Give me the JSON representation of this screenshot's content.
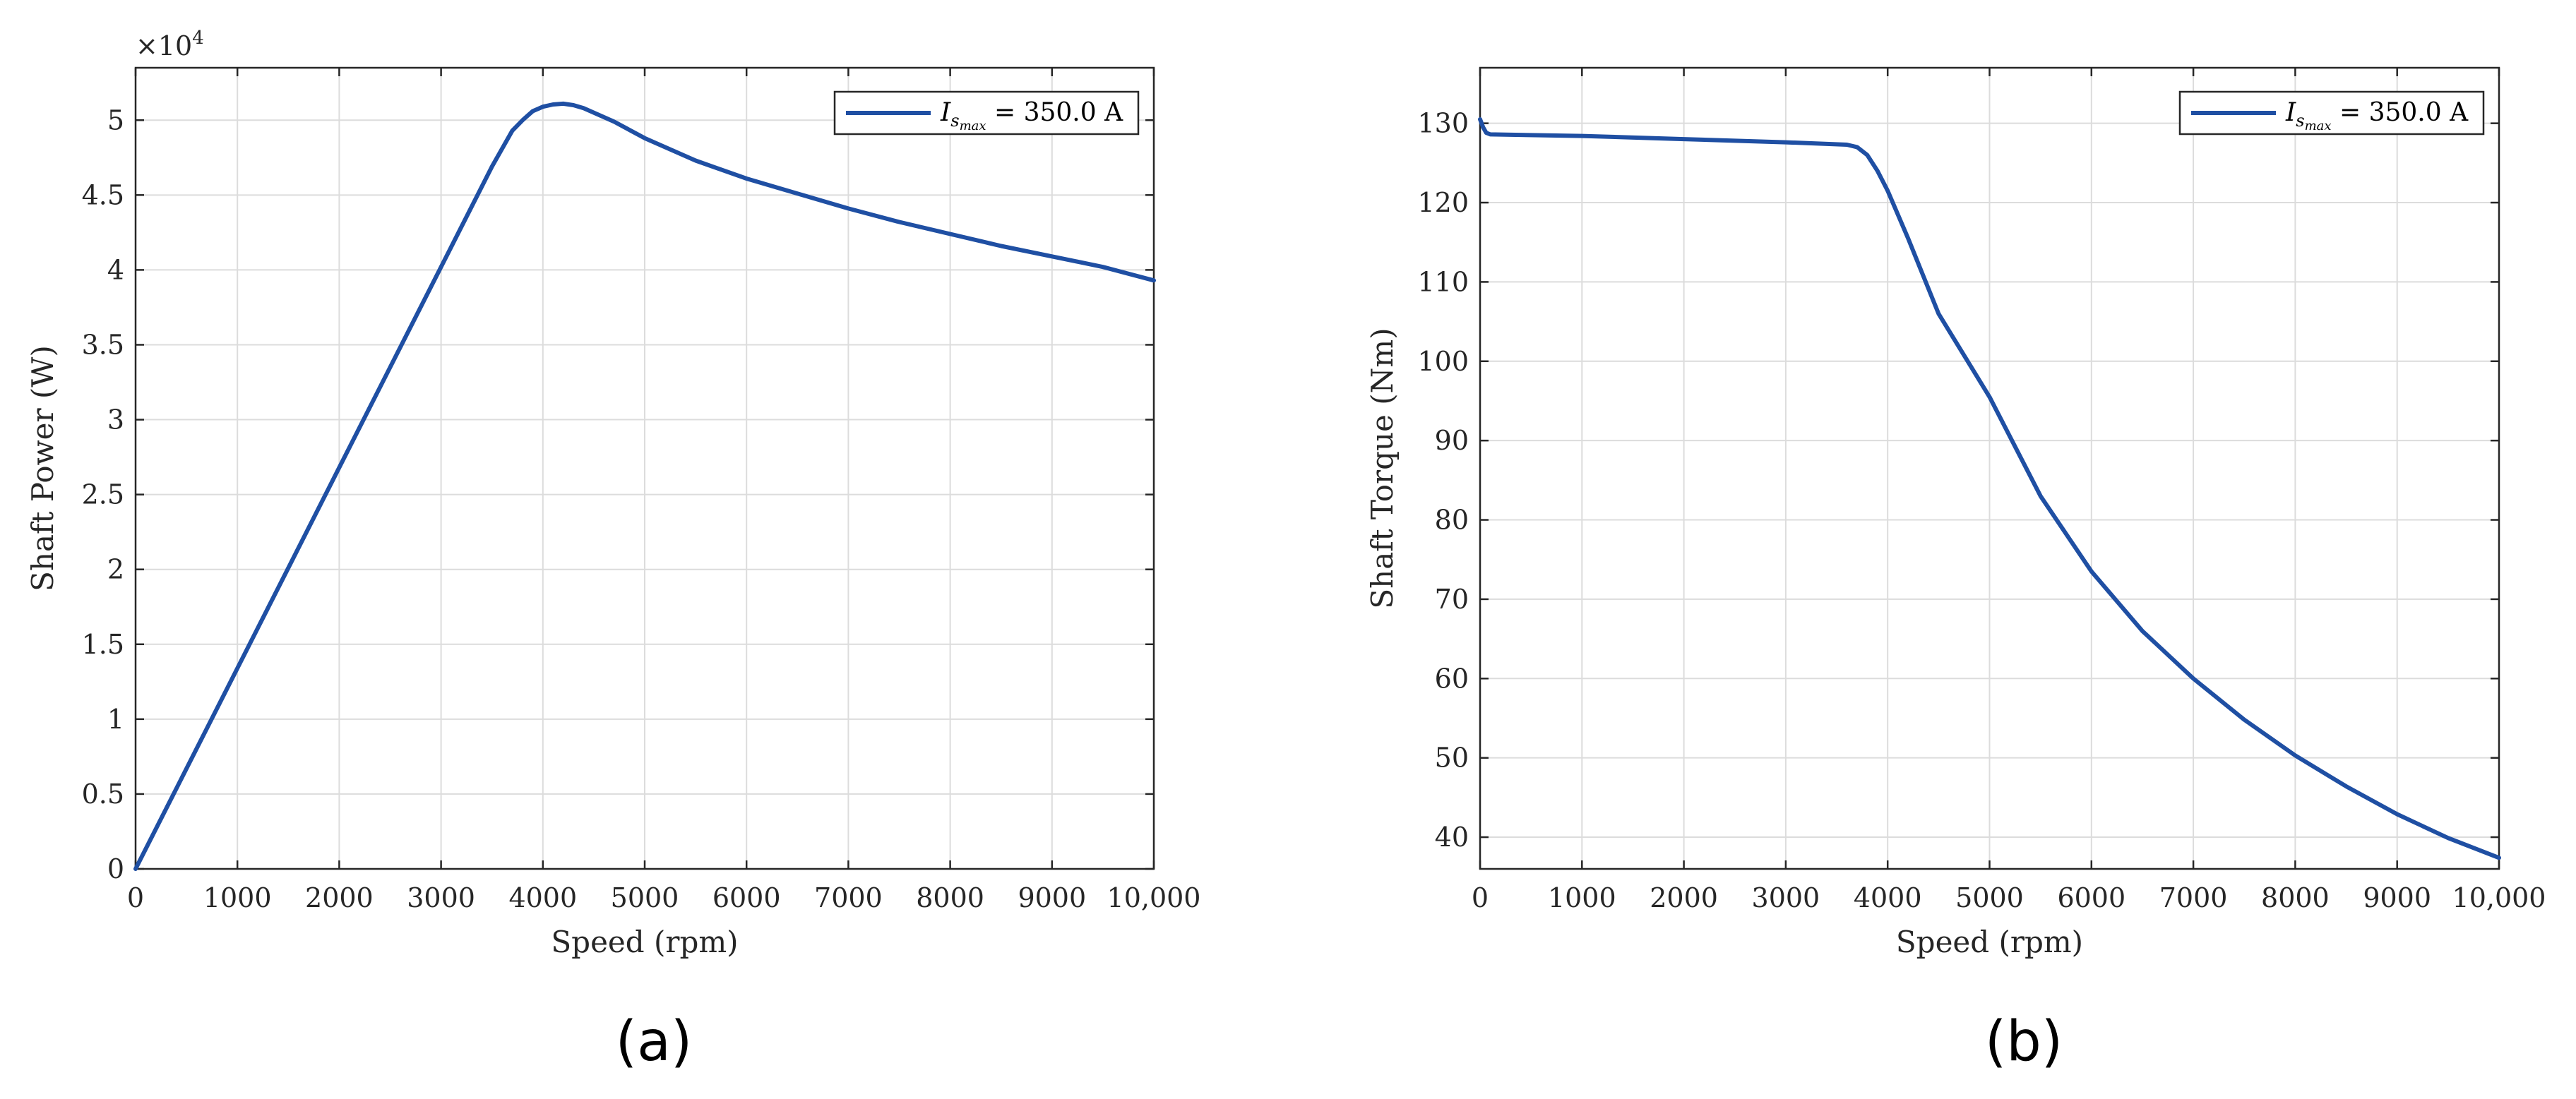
{
  "colors": {
    "series": "#1f4fa3",
    "grid": "#dcdcdc",
    "axis": "#262626"
  },
  "chart_data": [
    {
      "type": "line",
      "panel_label": "(a)",
      "xlabel": "Speed (rpm)",
      "ylabel": "Shaft Power (W)",
      "y_exponent_label": "×10",
      "y_exponent_power": "4",
      "xlim": [
        0,
        10000
      ],
      "ylim": [
        0,
        53500
      ],
      "grid": true,
      "legend": "top-right",
      "xticks": [
        {
          "v": 0,
          "label": "0"
        },
        {
          "v": 1000,
          "label": "1000"
        },
        {
          "v": 2000,
          "label": "2000"
        },
        {
          "v": 3000,
          "label": "3000"
        },
        {
          "v": 4000,
          "label": "4000"
        },
        {
          "v": 5000,
          "label": "5000"
        },
        {
          "v": 6000,
          "label": "6000"
        },
        {
          "v": 7000,
          "label": "7000"
        },
        {
          "v": 8000,
          "label": "8000"
        },
        {
          "v": 9000,
          "label": "9000"
        },
        {
          "v": 10000,
          "label": "10,000"
        }
      ],
      "yticks": [
        {
          "v": 0,
          "label": "0"
        },
        {
          "v": 5000,
          "label": "0.5"
        },
        {
          "v": 10000,
          "label": "1"
        },
        {
          "v": 15000,
          "label": "1.5"
        },
        {
          "v": 20000,
          "label": "2"
        },
        {
          "v": 25000,
          "label": "2.5"
        },
        {
          "v": 30000,
          "label": "3"
        },
        {
          "v": 35000,
          "label": "3.5"
        },
        {
          "v": 40000,
          "label": "4"
        },
        {
          "v": 45000,
          "label": "4.5"
        },
        {
          "v": 50000,
          "label": "5"
        }
      ],
      "series": [
        {
          "name": "I_smax = 350.0 A",
          "legend_main": "I",
          "legend_sub": "s",
          "legend_subsub": "max",
          "legend_rest": " = 350.0 A",
          "x": [
            0,
            500,
            1000,
            1500,
            2000,
            2500,
            3000,
            3500,
            3700,
            3800,
            3900,
            4000,
            4100,
            4200,
            4300,
            4400,
            4500,
            4700,
            5000,
            5500,
            6000,
            6500,
            7000,
            7500,
            8000,
            8500,
            9000,
            9500,
            10000
          ],
          "y": [
            0,
            6700,
            13400,
            20100,
            26800,
            33500,
            40200,
            46900,
            49300,
            50000,
            50600,
            50900,
            51050,
            51100,
            51000,
            50800,
            50500,
            49900,
            48800,
            47300,
            46100,
            45100,
            44100,
            43200,
            42400,
            41600,
            40900,
            40200,
            39300
          ]
        }
      ]
    },
    {
      "type": "line",
      "panel_label": "(b)",
      "xlabel": "Speed (rpm)",
      "ylabel": "Shaft Torque (Nm)",
      "xlim": [
        0,
        10000
      ],
      "ylim": [
        36,
        137
      ],
      "grid": true,
      "legend": "top-right",
      "xticks": [
        {
          "v": 0,
          "label": "0"
        },
        {
          "v": 1000,
          "label": "1000"
        },
        {
          "v": 2000,
          "label": "2000"
        },
        {
          "v": 3000,
          "label": "3000"
        },
        {
          "v": 4000,
          "label": "4000"
        },
        {
          "v": 5000,
          "label": "5000"
        },
        {
          "v": 6000,
          "label": "6000"
        },
        {
          "v": 7000,
          "label": "7000"
        },
        {
          "v": 8000,
          "label": "8000"
        },
        {
          "v": 9000,
          "label": "9000"
        },
        {
          "v": 10000,
          "label": "10,000"
        }
      ],
      "yticks": [
        {
          "v": 40,
          "label": "40"
        },
        {
          "v": 50,
          "label": "50"
        },
        {
          "v": 60,
          "label": "60"
        },
        {
          "v": 70,
          "label": "70"
        },
        {
          "v": 80,
          "label": "80"
        },
        {
          "v": 90,
          "label": "90"
        },
        {
          "v": 100,
          "label": "100"
        },
        {
          "v": 110,
          "label": "110"
        },
        {
          "v": 120,
          "label": "120"
        },
        {
          "v": 130,
          "label": "130"
        }
      ],
      "series": [
        {
          "name": "I_smax = 350.0 A",
          "legend_main": "I",
          "legend_sub": "s",
          "legend_subsub": "max",
          "legend_rest": " = 350.0 A",
          "x": [
            0,
            30,
            60,
            100,
            1000,
            2000,
            3000,
            3600,
            3700,
            3800,
            3900,
            4000,
            4200,
            4500,
            5000,
            5500,
            6000,
            6500,
            7000,
            7500,
            8000,
            8500,
            9000,
            9500,
            10000
          ],
          "y": [
            130.5,
            129.5,
            128.8,
            128.6,
            128.4,
            128.0,
            127.6,
            127.3,
            127.0,
            126.0,
            124.0,
            121.5,
            115.5,
            106.0,
            95.5,
            83.0,
            73.5,
            66.0,
            60.0,
            54.8,
            50.3,
            46.4,
            42.9,
            39.9,
            37.4
          ]
        }
      ]
    }
  ]
}
